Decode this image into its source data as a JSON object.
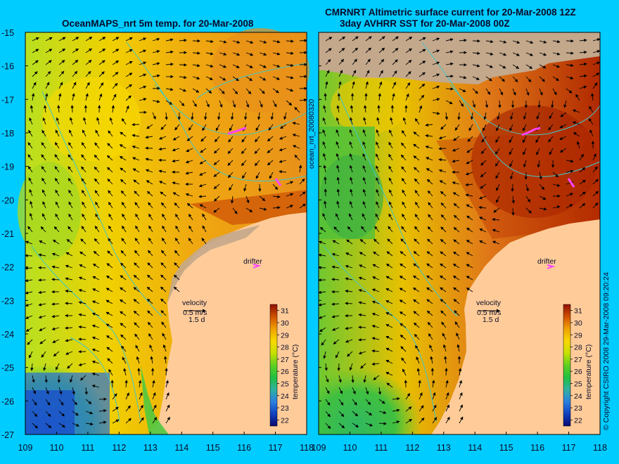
{
  "titles": {
    "left": "OceanMAPS_nrt 5m temp. for 20-Mar-2008",
    "right_line1": "CMRNRT Altimetric surface current for 20-Mar-2008 12Z",
    "right_line2": "3day AVHRR SST for 20-Mar-2008 00Z"
  },
  "side_labels": {
    "run_id": "ocean_nrt_20080320",
    "copyright": "© Copyright CSIRO 2008    29-Mar-2008 09:20:24"
  },
  "axes": {
    "lon_ticks": [
      "109",
      "110",
      "111",
      "112",
      "113",
      "114",
      "115",
      "116",
      "117",
      "118"
    ],
    "lat_ticks": [
      "-15",
      "-16",
      "-17",
      "-18",
      "-19",
      "-20",
      "-21",
      "-22",
      "-23",
      "-24",
      "-25",
      "-26",
      "-27"
    ],
    "lon_range": [
      109,
      118
    ],
    "lat_range": [
      -15,
      -27
    ]
  },
  "annotations": {
    "drifter": "drifter",
    "velocity": "velocity",
    "speed": "0.5 m/s",
    "duration": "1.5 d"
  },
  "colorbar": {
    "label": "temperature (°C)",
    "ticks": [
      "31",
      "30",
      "29",
      "28",
      "27",
      "26",
      "25",
      "24",
      "23",
      "22"
    ],
    "range": [
      21.5,
      31.5
    ]
  },
  "colors": {
    "background": "#00ccff",
    "land": "#ffcc99",
    "no_data": "#c4a88c",
    "drifter_track": "#ff44ff",
    "isobath": "#40c8c8"
  }
}
